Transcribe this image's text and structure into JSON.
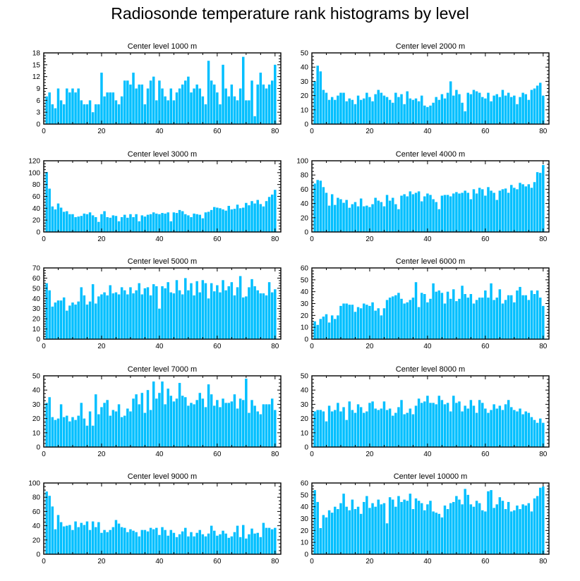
{
  "title": "Radiosonde temperature rank histograms by level",
  "colors": {
    "bar": "#00BFFF",
    "axis": "#000000",
    "background": "#FFFFFF"
  },
  "chart_data": [
    {
      "type": "bar",
      "title": "Center level 1000 m",
      "xlim": [
        0,
        82
      ],
      "ylim": [
        0,
        18
      ],
      "xticks": [
        0,
        20,
        40,
        60,
        80
      ],
      "yticks": [
        0,
        3,
        6,
        9,
        12,
        15,
        18
      ],
      "values": [
        7,
        8,
        5,
        4,
        9,
        6,
        5,
        9,
        8,
        9,
        8,
        9,
        6,
        5,
        5,
        6,
        3,
        5,
        5,
        13,
        7,
        8,
        8,
        8,
        6,
        5,
        7,
        11,
        11,
        10,
        13,
        9,
        10,
        10,
        5,
        9,
        11,
        12,
        6,
        11,
        9,
        7,
        6,
        9,
        6,
        8,
        9,
        10,
        11,
        12,
        8,
        9,
        10,
        9,
        7,
        5,
        16,
        11,
        10,
        8,
        5,
        15,
        9,
        7,
        10,
        7,
        6,
        9,
        17,
        6,
        6,
        11,
        2,
        10,
        13,
        10,
        9,
        10,
        11,
        15
      ]
    },
    {
      "type": "bar",
      "title": "Center level 2000 m",
      "xlim": [
        0,
        82
      ],
      "ylim": [
        0,
        50
      ],
      "xticks": [
        0,
        20,
        40,
        60,
        80
      ],
      "yticks": [
        0,
        10,
        20,
        30,
        40,
        50
      ],
      "values": [
        30,
        41,
        37,
        24,
        22,
        17,
        19,
        17,
        20,
        22,
        22,
        16,
        18,
        17,
        14,
        20,
        17,
        18,
        22,
        19,
        16,
        21,
        24,
        22,
        20,
        19,
        17,
        15,
        22,
        19,
        21,
        14,
        23,
        18,
        17,
        18,
        16,
        20,
        13,
        12,
        13,
        15,
        19,
        17,
        21,
        18,
        22,
        30,
        20,
        24,
        21,
        15,
        9,
        22,
        21,
        24,
        23,
        22,
        19,
        18,
        22,
        16,
        20,
        21,
        19,
        24,
        20,
        22,
        19,
        20,
        14,
        19,
        22,
        21,
        17,
        24,
        25,
        27,
        29,
        20
      ]
    },
    {
      "type": "bar",
      "title": "Center level 3000 m",
      "xlim": [
        0,
        82
      ],
      "ylim": [
        0,
        120
      ],
      "xticks": [
        0,
        20,
        40,
        60,
        80
      ],
      "yticks": [
        0,
        20,
        40,
        60,
        80,
        100,
        120
      ],
      "values": [
        101,
        73,
        43,
        38,
        48,
        41,
        34,
        35,
        30,
        30,
        25,
        26,
        27,
        31,
        30,
        33,
        28,
        25,
        17,
        30,
        35,
        25,
        24,
        28,
        27,
        18,
        25,
        29,
        24,
        30,
        25,
        30,
        18,
        28,
        26,
        29,
        30,
        33,
        31,
        30,
        32,
        31,
        33,
        18,
        33,
        32,
        37,
        35,
        30,
        28,
        25,
        31,
        30,
        29,
        23,
        33,
        34,
        37,
        42,
        41,
        40,
        38,
        36,
        44,
        38,
        39,
        46,
        40,
        41,
        49,
        45,
        52,
        48,
        54,
        47,
        43,
        52,
        59,
        63,
        71
      ]
    },
    {
      "type": "bar",
      "title": "Center level 4000 m",
      "xlim": [
        0,
        82
      ],
      "ylim": [
        0,
        100
      ],
      "xticks": [
        0,
        20,
        40,
        60,
        80
      ],
      "yticks": [
        0,
        20,
        40,
        60,
        80,
        100
      ],
      "values": [
        68,
        73,
        72,
        63,
        55,
        37,
        53,
        38,
        48,
        46,
        41,
        45,
        34,
        39,
        42,
        36,
        47,
        36,
        37,
        35,
        39,
        48,
        44,
        42,
        36,
        52,
        44,
        48,
        39,
        32,
        51,
        53,
        50,
        57,
        53,
        55,
        57,
        43,
        50,
        54,
        52,
        46,
        42,
        32,
        51,
        52,
        52,
        50,
        54,
        56,
        54,
        55,
        58,
        55,
        46,
        60,
        54,
        62,
        60,
        51,
        63,
        58,
        55,
        45,
        58,
        60,
        61,
        55,
        66,
        62,
        60,
        69,
        67,
        64,
        67,
        62,
        70,
        84,
        83,
        94
      ]
    },
    {
      "type": "bar",
      "title": "Center level 5000 m",
      "xlim": [
        0,
        82
      ],
      "ylim": [
        0,
        70
      ],
      "xticks": [
        0,
        20,
        40,
        60,
        80
      ],
      "yticks": [
        0,
        10,
        20,
        30,
        40,
        50,
        60,
        70
      ],
      "values": [
        55,
        48,
        32,
        36,
        38,
        38,
        41,
        28,
        33,
        36,
        34,
        37,
        51,
        43,
        34,
        37,
        54,
        35,
        42,
        44,
        46,
        43,
        53,
        45,
        46,
        44,
        51,
        48,
        44,
        51,
        45,
        48,
        55,
        44,
        50,
        51,
        43,
        54,
        52,
        30,
        52,
        50,
        56,
        46,
        45,
        58,
        48,
        44,
        60,
        48,
        55,
        43,
        57,
        46,
        58,
        55,
        40,
        55,
        47,
        53,
        46,
        58,
        48,
        52,
        56,
        43,
        51,
        62,
        41,
        42,
        51,
        59,
        52,
        48,
        45,
        45,
        43,
        56,
        46,
        49
      ]
    },
    {
      "type": "bar",
      "title": "Center level 6000 m",
      "xlim": [
        0,
        82
      ],
      "ylim": [
        0,
        60
      ],
      "xticks": [
        0,
        20,
        40,
        60,
        80
      ],
      "yticks": [
        0,
        10,
        20,
        30,
        40,
        50,
        60
      ],
      "values": [
        15,
        12,
        17,
        19,
        21,
        14,
        20,
        17,
        20,
        28,
        30,
        30,
        29,
        29,
        23,
        27,
        26,
        30,
        29,
        28,
        31,
        24,
        26,
        20,
        26,
        33,
        35,
        36,
        37,
        39,
        34,
        30,
        31,
        33,
        35,
        48,
        27,
        39,
        38,
        31,
        34,
        47,
        40,
        41,
        39,
        30,
        40,
        34,
        42,
        32,
        34,
        45,
        38,
        35,
        38,
        30,
        33,
        35,
        35,
        41,
        35,
        47,
        33,
        35,
        42,
        30,
        33,
        37,
        37,
        31,
        41,
        44,
        37,
        37,
        33,
        41,
        38,
        41,
        35,
        28
      ]
    },
    {
      "type": "bar",
      "title": "Center level 7000 m",
      "xlim": [
        0,
        82
      ],
      "ylim": [
        0,
        50
      ],
      "xticks": [
        0,
        20,
        40,
        60,
        80
      ],
      "yticks": [
        0,
        10,
        20,
        30,
        40,
        50
      ],
      "values": [
        31,
        35,
        21,
        19,
        20,
        30,
        21,
        22,
        18,
        21,
        19,
        22,
        31,
        20,
        15,
        25,
        15,
        37,
        23,
        28,
        31,
        33,
        22,
        26,
        25,
        30,
        21,
        22,
        27,
        25,
        34,
        37,
        30,
        38,
        24,
        40,
        26,
        46,
        34,
        38,
        46,
        30,
        41,
        36,
        32,
        34,
        45,
        36,
        35,
        29,
        31,
        30,
        33,
        38,
        34,
        28,
        44,
        37,
        29,
        33,
        28,
        34,
        31,
        31,
        32,
        37,
        27,
        34,
        33,
        48,
        24,
        33,
        29,
        25,
        23,
        30,
        30,
        30,
        34,
        26
      ]
    },
    {
      "type": "bar",
      "title": "Center level 8000 m",
      "xlim": [
        0,
        82
      ],
      "ylim": [
        0,
        50
      ],
      "xticks": [
        0,
        20,
        40,
        60,
        80
      ],
      "yticks": [
        0,
        10,
        20,
        30,
        40,
        50
      ],
      "values": [
        25,
        26,
        26,
        25,
        18,
        29,
        25,
        26,
        31,
        25,
        28,
        19,
        32,
        26,
        24,
        30,
        28,
        24,
        25,
        31,
        32,
        27,
        26,
        27,
        32,
        26,
        27,
        22,
        24,
        28,
        33,
        23,
        24,
        27,
        23,
        29,
        34,
        31,
        32,
        36,
        31,
        31,
        30,
        36,
        33,
        30,
        31,
        25,
        36,
        31,
        32,
        25,
        29,
        27,
        33,
        29,
        24,
        33,
        31,
        27,
        24,
        26,
        30,
        27,
        29,
        26,
        30,
        33,
        28,
        26,
        25,
        27,
        23,
        25,
        24,
        21,
        19,
        17,
        20,
        17
      ]
    },
    {
      "type": "bar",
      "title": "Center level 9000 m",
      "xlim": [
        0,
        82
      ],
      "ylim": [
        0,
        100
      ],
      "xticks": [
        0,
        20,
        40,
        60,
        80
      ],
      "yticks": [
        0,
        20,
        40,
        60,
        80,
        100
      ],
      "values": [
        88,
        82,
        67,
        35,
        55,
        45,
        39,
        40,
        41,
        34,
        46,
        38,
        44,
        41,
        46,
        34,
        46,
        38,
        45,
        30,
        34,
        31,
        34,
        38,
        48,
        43,
        38,
        37,
        31,
        35,
        33,
        31,
        25,
        34,
        34,
        32,
        37,
        35,
        37,
        27,
        38,
        34,
        26,
        34,
        30,
        24,
        28,
        32,
        37,
        25,
        31,
        25,
        30,
        34,
        28,
        25,
        29,
        40,
        33,
        26,
        28,
        33,
        29,
        23,
        25,
        31,
        40,
        24,
        41,
        22,
        28,
        36,
        29,
        30,
        24,
        44,
        37,
        37,
        35,
        37
      ]
    },
    {
      "type": "bar",
      "title": "Center level 10000 m",
      "xlim": [
        0,
        82
      ],
      "ylim": [
        0,
        60
      ],
      "xticks": [
        0,
        20,
        40,
        60,
        80
      ],
      "yticks": [
        0,
        10,
        20,
        30,
        40,
        50,
        60
      ],
      "values": [
        54,
        44,
        22,
        33,
        31,
        37,
        35,
        40,
        38,
        43,
        51,
        40,
        37,
        46,
        38,
        40,
        34,
        44,
        49,
        39,
        43,
        40,
        46,
        42,
        43,
        26,
        48,
        46,
        40,
        49,
        44,
        46,
        45,
        51,
        38,
        47,
        45,
        43,
        37,
        42,
        45,
        36,
        35,
        34,
        31,
        41,
        38,
        43,
        44,
        49,
        46,
        42,
        55,
        50,
        42,
        40,
        45,
        43,
        37,
        36,
        53,
        54,
        39,
        42,
        48,
        45,
        38,
        44,
        36,
        37,
        41,
        38,
        42,
        41,
        43,
        36,
        47,
        49,
        56,
        57
      ]
    }
  ]
}
